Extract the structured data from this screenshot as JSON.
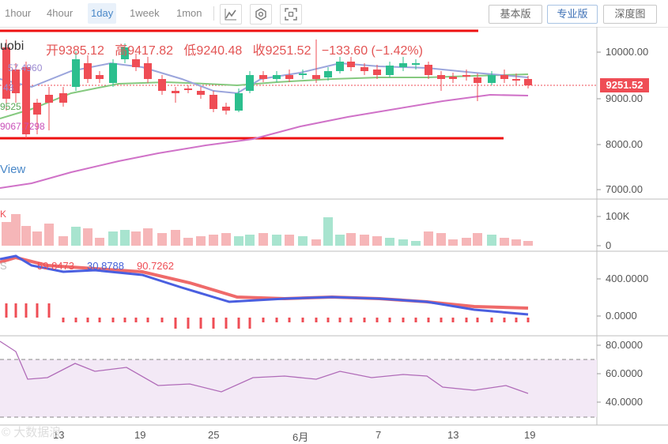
{
  "toolbar": {
    "timeframes": [
      {
        "label": "1hour",
        "active": false
      },
      {
        "label": "4hour",
        "active": false
      },
      {
        "label": "1day",
        "active": true
      },
      {
        "label": "1week",
        "active": false
      },
      {
        "label": "1mon",
        "active": false
      }
    ],
    "tools": [
      "indicator-icon",
      "settings-icon",
      "screenshot-icon"
    ],
    "views": [
      {
        "label": "基本版",
        "active": false
      },
      {
        "label": "专业版",
        "active": true
      },
      {
        "label": "深度图",
        "active": false
      }
    ]
  },
  "header": {
    "brand_fragment": "uobi",
    "open_label": "开",
    "open": "9385.12",
    "high_label": "高",
    "high": "9417.82",
    "low_label": "低",
    "low": "9240.48",
    "close_label": "收",
    "close": "9251.52",
    "change": "−133.60",
    "change_pct": "(−1.42%)"
  },
  "ma_legend": {
    "values": [
      "57.4960",
      "43",
      "9525",
      "9067.7298"
    ],
    "colors": [
      "#9b8ad1",
      "#9b8ad1",
      "#5aa858",
      "#c94fb8"
    ]
  },
  "watermark_fragment": "View",
  "price_axis": {
    "ticks": [
      "10000.00",
      "9000.00",
      "8000.00",
      "7000.00"
    ],
    "current": "9251.52"
  },
  "volume": {
    "label": "K",
    "ticks": [
      "100K",
      "0"
    ]
  },
  "macd": {
    "label": "S",
    "values": [
      "59.8473",
      "30.8788",
      "90.7262"
    ],
    "colors": [
      "#ef4d55",
      "#4460d8",
      "#ef4d55"
    ],
    "ticks": [
      "400.0000",
      "0.0000"
    ]
  },
  "rsi": {
    "ticks": [
      "80.0000",
      "60.0000",
      "40.0000"
    ]
  },
  "date_axis": {
    "labels": [
      "13",
      "19",
      "25",
      "6月",
      "7",
      "13",
      "19"
    ]
  },
  "footer": {
    "watermark": "© 大数据浪"
  },
  "colors": {
    "up": "#2cbf8e",
    "down": "#ef4d55",
    "ma1": "#9ba5dc",
    "ma2": "#85c97f",
    "ma3": "#d072c8",
    "macd": "#ef6a6a",
    "signal": "#4a5fe0",
    "rsi": "#b06bb8"
  }
}
